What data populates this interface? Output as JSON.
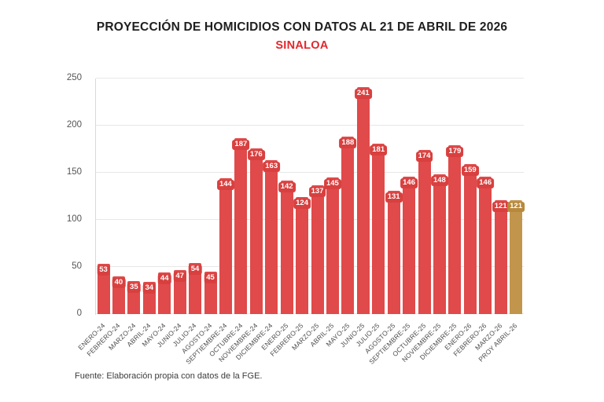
{
  "header": {
    "title": "PROYECCIÓN DE HOMICIDIOS CON DATOS AL 21 DE ABRIL DE 2026",
    "subtitle": "SINALOA"
  },
  "footer": {
    "source": "Fuente: Elaboración propia con datos de la FGE."
  },
  "colors": {
    "bar": "#e04a4a",
    "bar_badge": "#d8403f",
    "projection_bar": "#c2954c",
    "projection_badge": "#b8893c",
    "subtitle_red": "#e3262b",
    "title_text": "#1f1f1f"
  },
  "chart_data": {
    "type": "bar",
    "title": "PROYECCIÓN DE HOMICIDIOS CON DATOS AL 21 DE ABRIL DE 2026",
    "subtitle": "SINALOA",
    "categories": [
      "ENERO-24",
      "FEBRERO-24",
      "MARZO-24",
      "ABRIL-24",
      "MAYO-24",
      "JUNIO-24",
      "JULIO-24",
      "AGOSTO-24",
      "SEPTIEMBRE-24",
      "OCTUBRE-24",
      "NOVIEMBRE-24",
      "DICIEMBRE-24",
      "ENERO-25",
      "FEBRERO-25",
      "MARZO-25",
      "ABRIL-25",
      "MAYO-25",
      "JUNIO-25",
      "JULIO-25",
      "AGOSTO-25",
      "SEPTIEMBRE-25",
      "OCTUBRE-25",
      "NOVIEMBRE-25",
      "DICIEMBRE-25",
      "ENERO-26",
      "FEBRERO-26",
      "MARZO-26",
      "PROY ABRIL-26"
    ],
    "values": [
      53,
      40,
      35,
      34,
      44,
      47,
      54,
      45,
      144,
      187,
      176,
      163,
      142,
      124,
      137,
      145,
      188,
      241,
      181,
      131,
      146,
      174,
      148,
      179,
      159,
      146,
      121,
      121
    ],
    "highlight_index": 27,
    "ylim": [
      0,
      250
    ],
    "yticks": [
      0,
      50,
      100,
      150,
      200,
      250
    ],
    "grid": "horizontal",
    "legend": "none",
    "xlabel": "",
    "ylabel": "",
    "source": "Fuente: Elaboración propia con datos de la FGE."
  }
}
